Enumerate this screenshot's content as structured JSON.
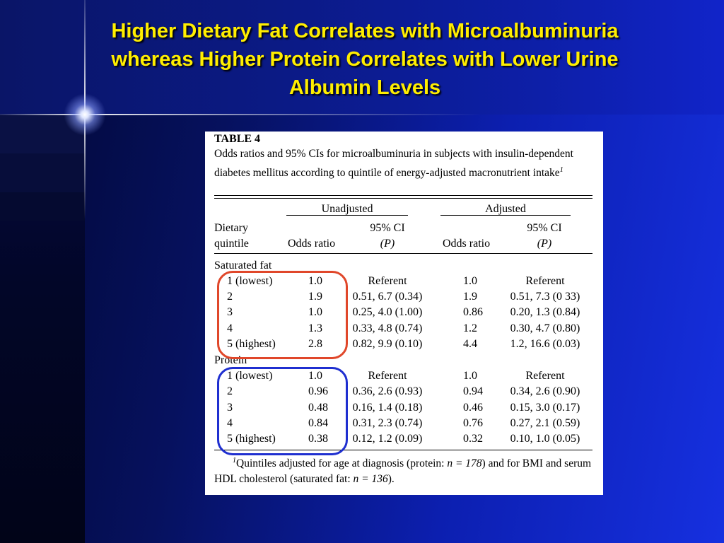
{
  "slide": {
    "title": "Higher Dietary Fat Correlates with Microalbuminuria\nwhereas Higher Protein Correlates with Lower Urine\nAlbumin Levels"
  },
  "table": {
    "label": "TABLE 4",
    "caption": "Odds ratios and 95% CIs for microalbuminuria in subjects with insulin-dependent diabetes mellitus according to quintile of energy-adjusted macronutrient intake",
    "caption_sup": "1",
    "group_headers": [
      "Unadjusted",
      "Adjusted"
    ],
    "col_headers": {
      "quintile_line1": "Dietary",
      "quintile_line2": "quintile",
      "odds_ratio": "Odds ratio",
      "ci_line1": "95% CI",
      "ci_line2": "(P)"
    },
    "sections": [
      {
        "name": "Saturated fat",
        "rows": [
          {
            "q": "1 (lowest)",
            "or_u": "1.0",
            "ci_u": "Referent",
            "or_a": "1.0",
            "ci_a": "Referent"
          },
          {
            "q": "2",
            "or_u": "1.9",
            "ci_u": "0.51, 6.7 (0.34)",
            "or_a": "1.9",
            "ci_a": "0.51, 7.3 (0 33)"
          },
          {
            "q": "3",
            "or_u": "1.0",
            "ci_u": "0.25, 4.0 (1.00)",
            "or_a": "0.86",
            "ci_a": "0.20, 1.3 (0.84)"
          },
          {
            "q": "4",
            "or_u": "1.3",
            "ci_u": "0.33, 4.8 (0.74)",
            "or_a": "1.2",
            "ci_a": "0.30, 4.7 (0.80)"
          },
          {
            "q": "5 (highest)",
            "or_u": "2.8",
            "ci_u": "0.82, 9.9 (0.10)",
            "or_a": "4.4",
            "ci_a": "1.2, 16.6 (0.03)"
          }
        ]
      },
      {
        "name": "Protein",
        "rows": [
          {
            "q": "1 (lowest)",
            "or_u": "1.0",
            "ci_u": "Referent",
            "or_a": "1.0",
            "ci_a": "Referent"
          },
          {
            "q": "2",
            "or_u": "0.96",
            "ci_u": "0.36, 2.6 (0.93)",
            "or_a": "0.94",
            "ci_a": "0.34, 2.6 (0.90)"
          },
          {
            "q": "3",
            "or_u": "0.48",
            "ci_u": "0.16, 1.4 (0.18)",
            "or_a": "0.46",
            "ci_a": "0.15, 3.0 (0.17)"
          },
          {
            "q": "4",
            "or_u": "0.84",
            "ci_u": "0.31, 2.3 (0.74)",
            "or_a": "0.76",
            "ci_a": "0.27, 2.1 (0.59)"
          },
          {
            "q": "5 (highest)",
            "or_u": "0.38",
            "ci_u": "0.12, 1.2 (0.09)",
            "or_a": "0.32",
            "ci_a": "0.10, 1.0 (0.05)"
          }
        ]
      }
    ],
    "footnote": {
      "sup": "1",
      "part1": "Quintiles adjusted for age at diagnosis (protein: ",
      "n_protein": "n = 178",
      "part2": ") and for BMI and serum HDL cholesterol (saturated fat: ",
      "n_satfat": "n = 136",
      "part3": ")."
    }
  },
  "highlights": {
    "saturated_fat_box_color": "#e0472a",
    "protein_box_color": "#1f2fd0"
  }
}
